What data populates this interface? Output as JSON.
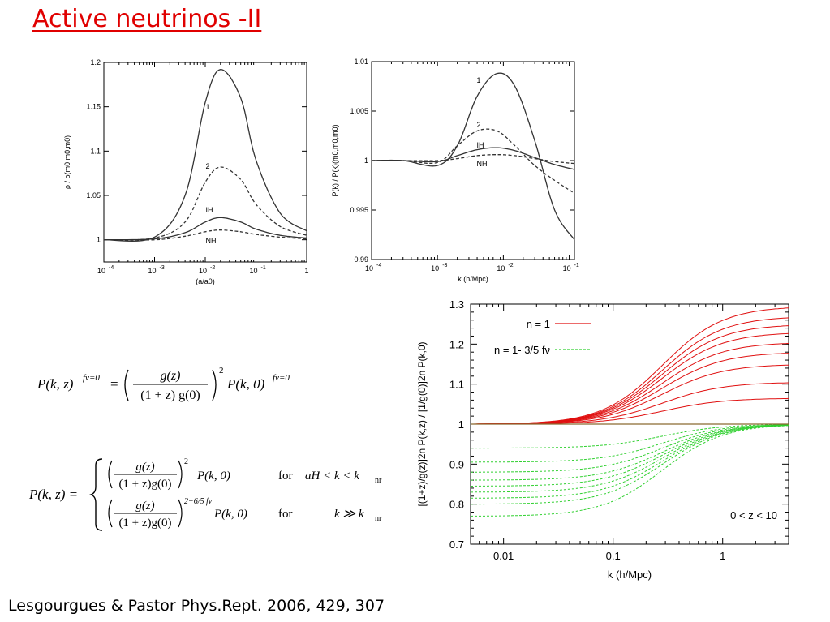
{
  "slide": {
    "title": "Active neutrinos -II",
    "citation": "Lesgourgues & Pastor Phys.Rept. 2006, 429, 307"
  },
  "equations": {
    "eq1": {
      "lhs": "P(k, z)",
      "lhs_sup": "fν=0",
      "eq": "=",
      "frac_num": "g(z)",
      "frac_den": "(1 + z) g(0)",
      "power": "2",
      "rhs": "P(k, 0)",
      "rhs_sup": "fν=0"
    },
    "eq2": {
      "lhs": "P(k, z) =",
      "row1": {
        "num": "g(z)",
        "den": "(1 + z)g(0)",
        "power": "2",
        "rhs": "P(k, 0)",
        "for": "for",
        "cond": "aH < k < k",
        "cond_sub": "nr"
      },
      "row2": {
        "num": "g(z)",
        "den": "(1 + z)g(0)",
        "power": "2−6/5 fν",
        "rhs": "P(k, 0)",
        "for": "for",
        "cond": "k ≫ k",
        "cond_sub": "nr"
      }
    }
  },
  "chart_data": [
    {
      "type": "line",
      "ylabel": "ρ / ρ(m0,m0,m0)",
      "xlabel": "(a/a0)",
      "xscale": "log",
      "xlim": [
        0.0001,
        1
      ],
      "ylim": [
        0.975,
        1.2
      ],
      "xticks": [
        "10-4",
        "10-3",
        "10-2",
        "10-1",
        "1"
      ],
      "yticks": [
        "1.2",
        "1.15",
        "1.1",
        "1.05",
        "1"
      ],
      "annotations": [
        "1",
        "2",
        "IH",
        "NH"
      ],
      "series": [
        {
          "name": "1",
          "style": "solid",
          "x": [
            0.0001,
            0.001,
            0.004,
            0.01,
            0.02,
            0.05,
            0.1,
            0.3,
            1
          ],
          "y": [
            1.0,
            1.003,
            1.05,
            1.155,
            1.192,
            1.16,
            1.09,
            1.03,
            1.01
          ]
        },
        {
          "name": "2",
          "style": "dashed",
          "x": [
            0.0001,
            0.001,
            0.004,
            0.01,
            0.02,
            0.05,
            0.1,
            0.3,
            1
          ],
          "y": [
            1.0,
            1.002,
            1.02,
            1.065,
            1.082,
            1.068,
            1.04,
            1.015,
            1.005
          ]
        },
        {
          "name": "IH",
          "style": "solid",
          "x": [
            0.0001,
            0.001,
            0.004,
            0.01,
            0.02,
            0.05,
            0.1,
            0.3,
            1
          ],
          "y": [
            1.0,
            1.001,
            1.008,
            1.02,
            1.025,
            1.02,
            1.012,
            1.005,
            1.002
          ]
        },
        {
          "name": "NH",
          "style": "dashed",
          "x": [
            0.0001,
            0.001,
            0.004,
            0.01,
            0.02,
            0.05,
            0.1,
            0.3,
            1
          ],
          "y": [
            1.0,
            1.0,
            1.004,
            1.009,
            1.011,
            1.009,
            1.006,
            1.003,
            1.001
          ]
        }
      ]
    },
    {
      "type": "line",
      "ylabel": "P(k) / P(k)(m0,m0,m0)",
      "xlabel": "k  (h/Mpc)",
      "xscale": "log",
      "xlim": [
        0.0001,
        0.12
      ],
      "ylim": [
        0.99,
        1.01
      ],
      "xticks": [
        "10-4",
        "10-3",
        "10-2",
        "10-1"
      ],
      "yticks": [
        "1.01",
        "1.005",
        "1",
        "0.995",
        "0.99"
      ],
      "annotations": [
        "1",
        "2",
        "IH",
        "NH"
      ],
      "series": [
        {
          "name": "1",
          "style": "solid",
          "x": [
            0.0001,
            0.0003,
            0.001,
            0.002,
            0.004,
            0.008,
            0.015,
            0.03,
            0.06,
            0.12
          ],
          "y": [
            1.0,
            1.0,
            0.9995,
            1.0015,
            1.0065,
            1.0088,
            1.0075,
            1.002,
            0.995,
            0.992
          ]
        },
        {
          "name": "2",
          "style": "dashed",
          "x": [
            0.0001,
            0.0003,
            0.001,
            0.002,
            0.004,
            0.008,
            0.015,
            0.03,
            0.06,
            0.12
          ],
          "y": [
            1.0,
            1.0,
            0.9998,
            1.0015,
            1.003,
            1.003,
            1.0015,
            0.9995,
            0.998,
            0.9967
          ]
        },
        {
          "name": "IH",
          "style": "solid",
          "x": [
            0.0001,
            0.0003,
            0.001,
            0.002,
            0.004,
            0.008,
            0.015,
            0.03,
            0.06,
            0.12
          ],
          "y": [
            1.0,
            1.0,
            0.9999,
            1.0005,
            1.0011,
            1.0013,
            1.001,
            1.0003,
            0.9996,
            0.9991
          ]
        },
        {
          "name": "NH",
          "style": "dashed",
          "x": [
            0.0001,
            0.0003,
            0.001,
            0.002,
            0.004,
            0.008,
            0.015,
            0.03,
            0.06,
            0.12
          ],
          "y": [
            1.0,
            1.0,
            1.0,
            1.0002,
            1.0005,
            1.0006,
            1.0005,
            1.0002,
            0.9999,
            0.9997
          ]
        }
      ]
    },
    {
      "type": "line",
      "ylabel": "[(1+z)/g(z)]2n P(k,z) / [1/g(0)]2n P(k,0)",
      "xlabel": "k   (h/Mpc)",
      "xscale": "log",
      "xlim": [
        0.005,
        4
      ],
      "ylim": [
        0.7,
        1.3
      ],
      "xticks": [
        "0.01",
        "0.1",
        "1"
      ],
      "yticks": [
        "0.7",
        "0.8",
        "0.9",
        "1",
        "1.1",
        "1.2",
        "1.3"
      ],
      "legend": [
        {
          "label": "n = 1",
          "color": "#e01010",
          "style": "solid"
        },
        {
          "label": "n = 1- 3/5 fν",
          "color": "#30d030",
          "style": "dashed"
        }
      ],
      "annotation": "0 < z < 10",
      "series_red_plateaus": [
        1.065,
        1.105,
        1.15,
        1.18,
        1.205,
        1.23,
        1.25,
        1.27,
        1.295
      ],
      "series_green_plateaus": [
        0.94,
        0.905,
        0.88,
        0.86,
        0.845,
        0.83,
        0.815,
        0.8,
        0.77
      ]
    }
  ],
  "colors": {
    "title": "#e00000",
    "red": "#e01010",
    "green": "#30d030"
  }
}
